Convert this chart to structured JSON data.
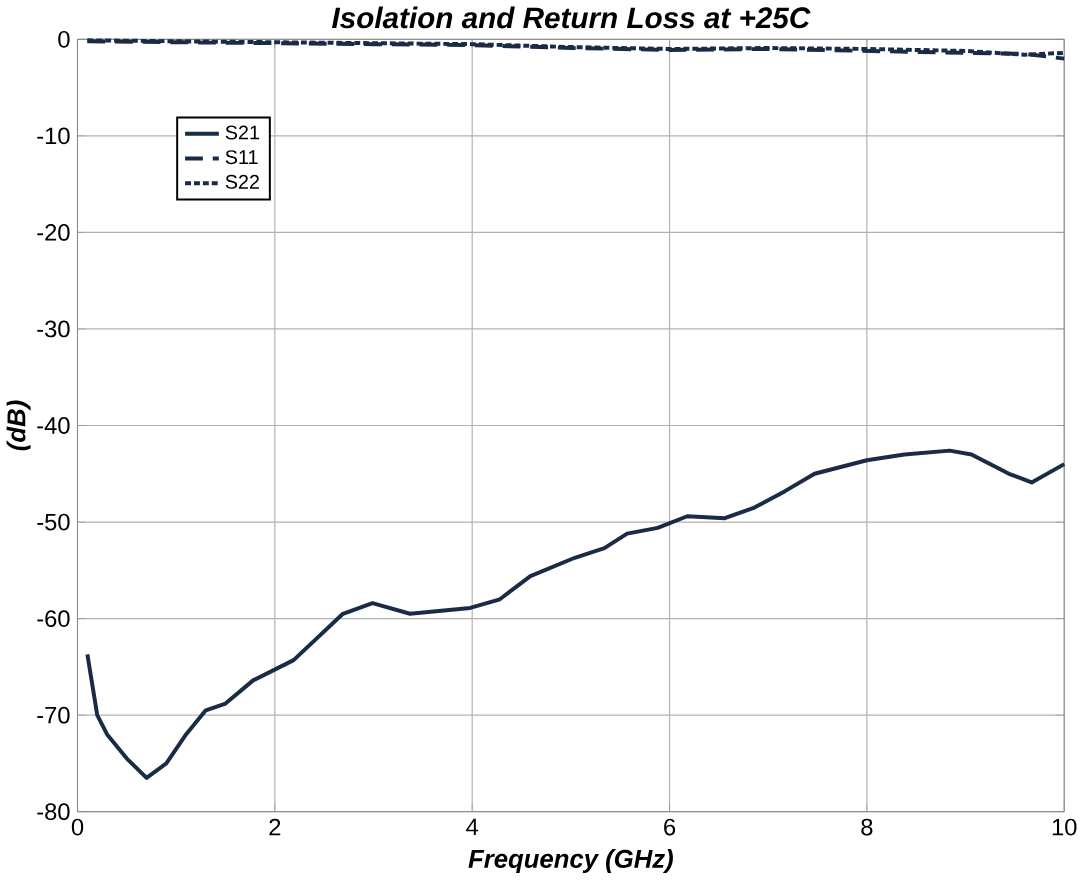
{
  "chart_data": {
    "type": "line",
    "title": "Isolation and Return Loss at +25C",
    "xlabel": "Frequency (GHz)",
    "ylabel": "(dB)",
    "xlim": [
      0,
      10
    ],
    "ylim": [
      -80,
      0
    ],
    "xticks": [
      0,
      2,
      4,
      6,
      8,
      10
    ],
    "yticks": [
      -80,
      -70,
      -60,
      -50,
      -40,
      -30,
      -20,
      -10,
      0
    ],
    "grid": true,
    "legend": "top left",
    "marker": "none",
    "series": [
      {
        "name": "S21",
        "color": "#1a2b45",
        "line_style": "solid",
        "x": [
          0.1,
          0.2,
          0.3,
          0.5,
          0.7,
          0.9,
          1.1,
          1.3,
          1.5,
          1.78,
          2.19,
          2.69,
          2.99,
          3.37,
          3.98,
          4.28,
          4.59,
          5.04,
          5.34,
          5.57,
          5.88,
          6.18,
          6.56,
          6.86,
          7.17,
          7.47,
          8.0,
          8.38,
          8.84,
          9.06,
          9.44,
          9.67,
          10
        ],
        "values": [
          -63.7,
          -70,
          -72,
          -74.5,
          -76.5,
          -75,
          -72,
          -69.5,
          -68.8,
          -66.4,
          -64.3,
          -59.5,
          -58.4,
          -59.5,
          -58.9,
          -58,
          -55.6,
          -53.7,
          -52.7,
          -51.2,
          -50.6,
          -49.4,
          -49.6,
          -48.5,
          -46.8,
          -45,
          -43.6,
          -43,
          -42.6,
          -43,
          -45,
          -45.9,
          -44
        ]
      },
      {
        "name": "S11",
        "color": "#1a2b45",
        "line_style": "dashed",
        "x": [
          0.1,
          1,
          2,
          3,
          4,
          5,
          6,
          7,
          8,
          9,
          9.6,
          10
        ],
        "values": [
          -0.2,
          -0.3,
          -0.4,
          -0.5,
          -0.6,
          -0.9,
          -1.1,
          -1.0,
          -1.2,
          -1.4,
          -1.5,
          -2.0
        ]
      },
      {
        "name": "S22",
        "color": "#1a2b45",
        "line_style": "dotted",
        "x": [
          0.1,
          1,
          2,
          3,
          4,
          5,
          6,
          7,
          8,
          9,
          9.6,
          10
        ],
        "values": [
          -0.1,
          -0.2,
          -0.3,
          -0.4,
          -0.5,
          -0.8,
          -1.0,
          -0.9,
          -1.0,
          -1.2,
          -1.6,
          -1.4
        ]
      }
    ]
  }
}
